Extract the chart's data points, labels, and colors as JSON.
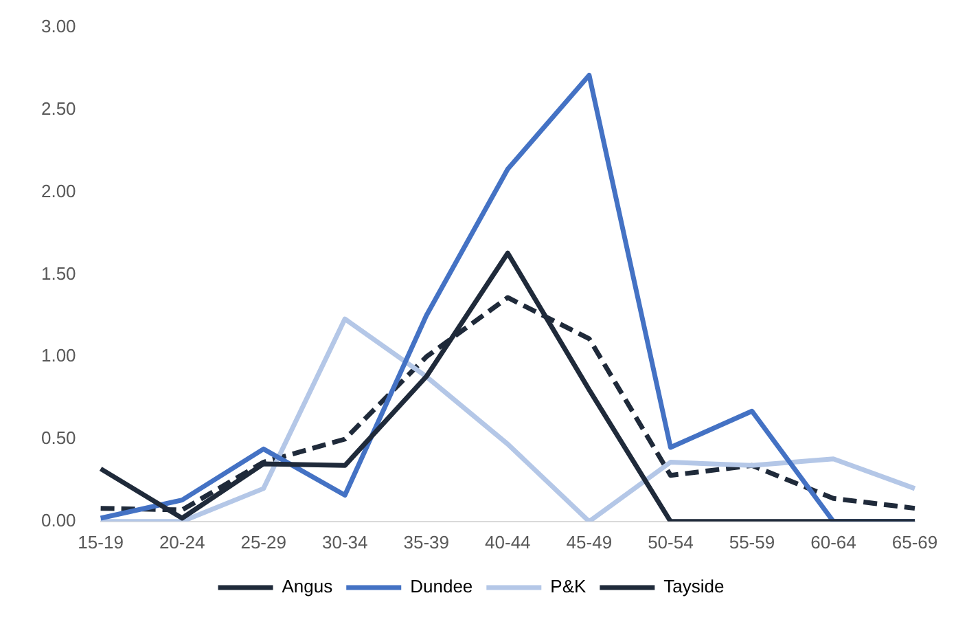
{
  "chart_data": {
    "type": "line",
    "categories": [
      "15-19",
      "20-24",
      "25-29",
      "30-34",
      "35-39",
      "40-44",
      "45-49",
      "50-54",
      "55-59",
      "60-64",
      "65-69"
    ],
    "series": [
      {
        "name": "Angus",
        "color": "#1f2a3a",
        "values": [
          0.32,
          0.02,
          0.35,
          0.34,
          0.88,
          1.63,
          0.8,
          0,
          0,
          0,
          0
        ]
      },
      {
        "name": "Dundee",
        "color": "#4472c4",
        "values": [
          0.02,
          0.13,
          0.44,
          0.16,
          1.25,
          2.14,
          2.71,
          0.45,
          0.67,
          0,
          0
        ]
      },
      {
        "name": "P&K",
        "color": "#b4c7e7",
        "values": [
          0,
          0,
          0.2,
          1.23,
          0.88,
          0.47,
          0,
          0.36,
          0.34,
          0.38,
          0.2
        ]
      },
      {
        "name": "Tayside",
        "color": "#1f2a3a",
        "line_style": "dashed",
        "values": [
          0.08,
          0.07,
          0.36,
          0.5,
          1.0,
          1.36,
          1.11,
          0.28,
          0.34,
          0.14,
          0.08
        ]
      }
    ],
    "ylim": [
      0,
      3
    ],
    "yticks": [
      {
        "value": 0,
        "label": "0.00"
      },
      {
        "value": 0.5,
        "label": "0.50"
      },
      {
        "value": 1,
        "label": "1.00"
      },
      {
        "value": 1.5,
        "label": "1.50"
      },
      {
        "value": 2,
        "label": "2.00"
      },
      {
        "value": 2.5,
        "label": "2.50"
      },
      {
        "value": 3,
        "label": "3.00"
      }
    ],
    "grid": false,
    "legend": "bottom",
    "line_style": "solid",
    "marker": "none"
  }
}
